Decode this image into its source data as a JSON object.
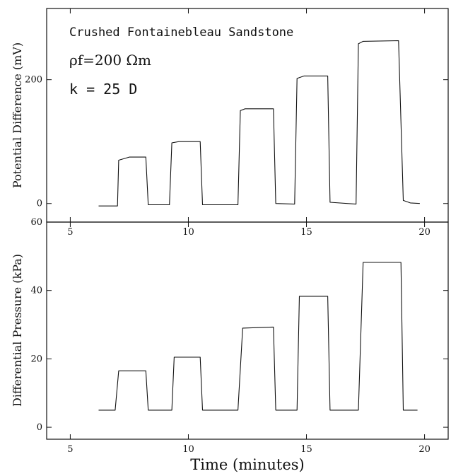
{
  "chart_data": [
    {
      "type": "line",
      "annotations": [
        "Crushed Fontainebleau Sandstone",
        "ρf=200 Ωm",
        "k = 25 D"
      ],
      "ylabel": "Potential Difference (mV)",
      "xlim": [
        4,
        21
      ],
      "ylim": [
        -30,
        315
      ],
      "xticks": [
        5,
        10,
        15,
        20
      ],
      "xtick_labels": [
        "5",
        "10",
        "15",
        "20"
      ],
      "yticks": [
        0,
        200
      ],
      "ytick_labels": [
        "0",
        "200"
      ],
      "grid": false,
      "series": [
        {
          "x": [
            6.2,
            7.0,
            7.05,
            7.5,
            8.2,
            8.3,
            9.2,
            9.3,
            9.6,
            10.5,
            10.6,
            12.1,
            12.2,
            12.4,
            13.6,
            13.7,
            14.5,
            14.6,
            14.9,
            15.9,
            16.0,
            17.1,
            17.2,
            17.4,
            18.9,
            19.1,
            19.4,
            19.8
          ],
          "y": [
            -4,
            -4,
            70,
            75,
            75,
            -2,
            -2,
            98,
            100,
            100,
            -2,
            -2,
            150,
            153,
            153,
            0,
            -1,
            202,
            206,
            206,
            2,
            -1,
            258,
            262,
            263,
            5,
            1,
            0
          ]
        }
      ]
    },
    {
      "type": "line",
      "xlabel": "Time (minutes)",
      "ylabel": "Differential Pressure (kPa)",
      "xlim": [
        4,
        21
      ],
      "ylim": [
        -3.5,
        60
      ],
      "xticks": [
        5,
        10,
        15,
        20
      ],
      "xtick_labels": [
        "5",
        "10",
        "15",
        "20"
      ],
      "yticks": [
        0,
        20,
        40,
        60
      ],
      "ytick_labels": [
        "0",
        "20",
        "40",
        "60"
      ],
      "grid": false,
      "series": [
        {
          "x": [
            6.2,
            6.9,
            7.05,
            8.2,
            8.3,
            9.3,
            9.4,
            10.5,
            10.6,
            12.1,
            12.3,
            13.6,
            13.7,
            14.6,
            14.7,
            15.9,
            16.0,
            17.2,
            17.4,
            19.0,
            19.1,
            19.7
          ],
          "y": [
            5,
            5,
            16.5,
            16.5,
            5,
            5,
            20.5,
            20.5,
            5,
            5,
            29,
            29.3,
            5,
            5,
            38.3,
            38.3,
            5,
            5,
            48.2,
            48.2,
            5,
            5
          ]
        }
      ]
    }
  ]
}
